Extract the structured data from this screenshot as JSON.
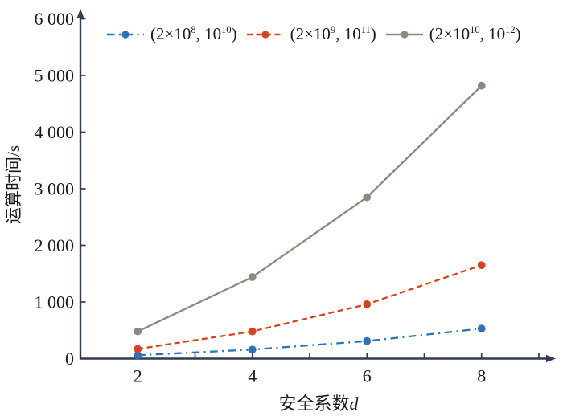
{
  "chart_data": {
    "type": "line",
    "title": "",
    "xlabel_parts": [
      {
        "t": "安全系数"
      },
      {
        "t": "d",
        "italic": true
      }
    ],
    "ylabel": "运算时间/s",
    "x": [
      2,
      4,
      6,
      8
    ],
    "x_tick_labels": [
      "2",
      "4",
      "6",
      "8"
    ],
    "x_major_ticks": [
      2,
      4,
      6,
      8
    ],
    "x_minor_ticks": [
      3,
      5,
      7,
      9
    ],
    "y_ticks": [
      0,
      1000,
      2000,
      3000,
      4000,
      5000,
      6000
    ],
    "y_tick_labels": [
      "0",
      "1 000",
      "2 000",
      "3 000",
      "4 000",
      "5 000",
      "6 000"
    ],
    "xlim": [
      1,
      10.3
    ],
    "ylim": [
      0,
      6150
    ],
    "grid": false,
    "legend_position": "top-inside",
    "axis_color": "#2e3a57",
    "text_color": "#1a1a1a",
    "background_color": "#ffffff",
    "series": [
      {
        "name": "(2×10^8, 10^10)",
        "label_parts": [
          {
            "t": "(2×10"
          },
          {
            "t": "8",
            "sup": true
          },
          {
            "t": ", 10"
          },
          {
            "t": "10",
            "sup": true
          },
          {
            "t": ")"
          }
        ],
        "color": "#2e73b4",
        "line_style": "dashdot",
        "marker": "circle",
        "values": [
          60,
          160,
          310,
          530
        ]
      },
      {
        "name": "(2×10^9, 10^11)",
        "label_parts": [
          {
            "t": "(2×10"
          },
          {
            "t": "9",
            "sup": true
          },
          {
            "t": ", 10"
          },
          {
            "t": "11",
            "sup": true
          },
          {
            "t": ")"
          }
        ],
        "color": "#d6431f",
        "line_style": "dashed",
        "marker": "circle",
        "values": [
          170,
          480,
          960,
          1650
        ]
      },
      {
        "name": "(2×10^10, 10^12)",
        "label_parts": [
          {
            "t": "(2×10"
          },
          {
            "t": "10",
            "sup": true
          },
          {
            "t": ", 10"
          },
          {
            "t": "12",
            "sup": true
          },
          {
            "t": ")"
          }
        ],
        "color": "#8f887e",
        "line_style": "solid",
        "marker": "circle",
        "values": [
          480,
          1440,
          2850,
          4820
        ]
      }
    ]
  }
}
